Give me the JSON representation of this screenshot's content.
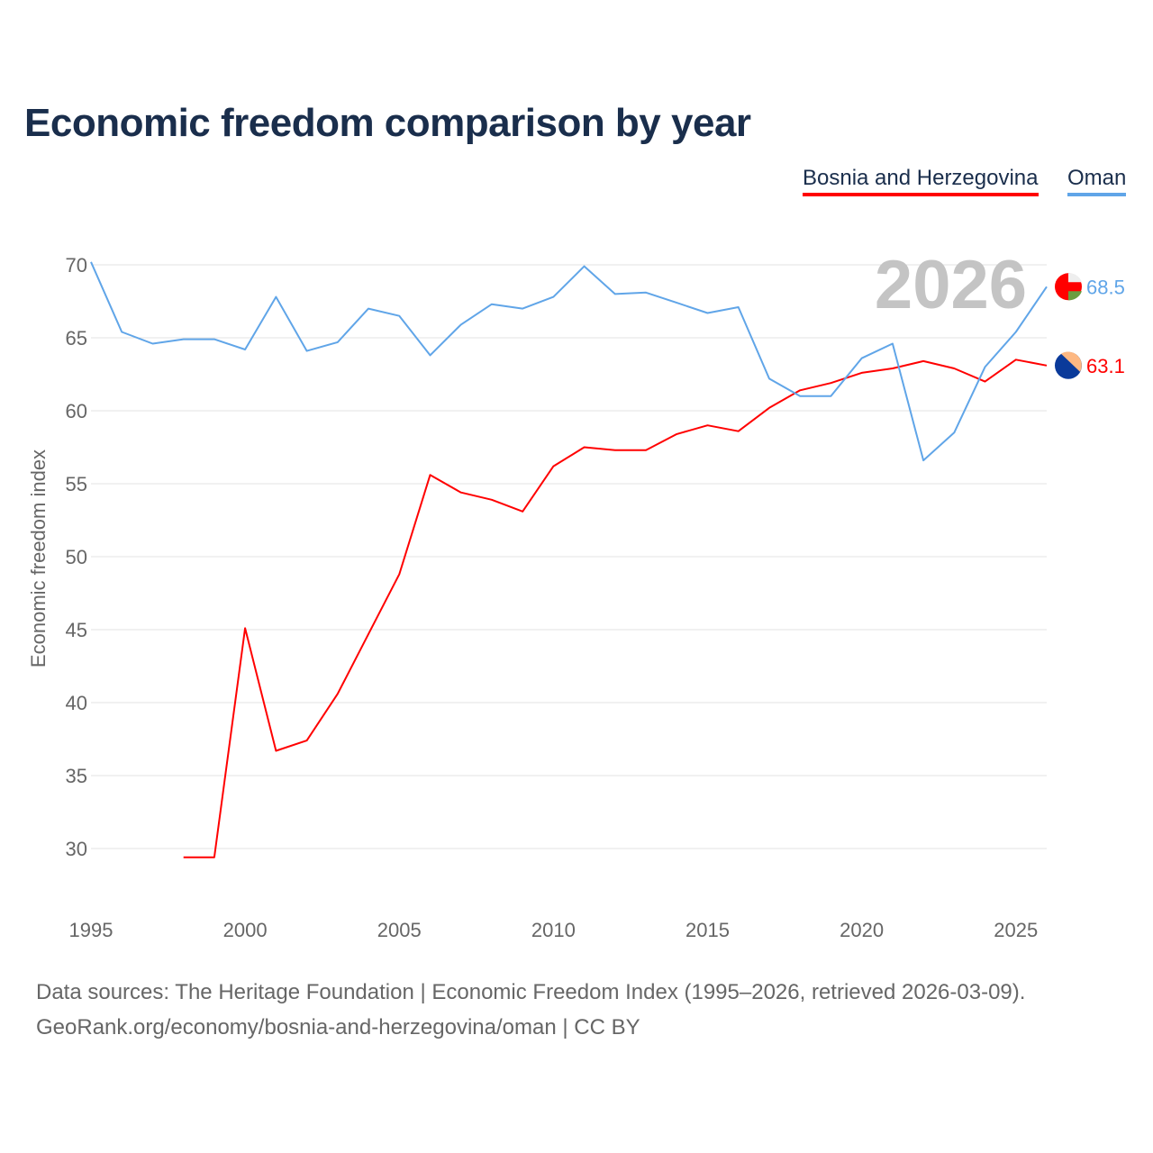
{
  "chart_data": {
    "type": "line",
    "title": "Economic freedom comparison by year",
    "xlabel": "",
    "ylabel": "Economic freedom index",
    "xlim": [
      1995,
      2026
    ],
    "ylim": [
      26,
      72
    ],
    "x_ticks": [
      1995,
      2000,
      2005,
      2010,
      2015,
      2020,
      2025
    ],
    "y_ticks": [
      30,
      35,
      40,
      45,
      50,
      55,
      60,
      65,
      70
    ],
    "grid": true,
    "legend_placement": "top-right",
    "year_watermark": "2026",
    "series": [
      {
        "name": "Bosnia and Herzegovina",
        "color": "#ff0000",
        "end_label": "63.1",
        "x": [
          1998,
          1999,
          2000,
          2001,
          2002,
          2003,
          2004,
          2005,
          2006,
          2007,
          2008,
          2009,
          2010,
          2011,
          2012,
          2013,
          2014,
          2015,
          2016,
          2017,
          2018,
          2019,
          2020,
          2021,
          2022,
          2023,
          2024,
          2025,
          2026
        ],
        "values": [
          29.4,
          29.4,
          45.1,
          36.7,
          37.4,
          40.6,
          44.7,
          48.8,
          55.6,
          54.4,
          53.9,
          53.1,
          56.2,
          57.5,
          57.3,
          57.3,
          58.4,
          59.0,
          58.6,
          60.2,
          61.4,
          61.9,
          62.6,
          62.9,
          63.4,
          62.9,
          62.0,
          63.5,
          63.1
        ]
      },
      {
        "name": "Oman",
        "color": "#60a5e8",
        "end_label": "68.5",
        "x": [
          1995,
          1996,
          1997,
          1998,
          1999,
          2000,
          2001,
          2002,
          2003,
          2004,
          2005,
          2006,
          2007,
          2008,
          2009,
          2010,
          2011,
          2012,
          2013,
          2014,
          2015,
          2016,
          2017,
          2018,
          2019,
          2020,
          2021,
          2022,
          2023,
          2024,
          2025,
          2026
        ],
        "values": [
          70.2,
          65.4,
          64.6,
          64.9,
          64.9,
          64.2,
          67.8,
          64.1,
          64.7,
          67.0,
          66.5,
          63.8,
          65.9,
          67.3,
          67.0,
          67.8,
          69.9,
          68.0,
          68.1,
          67.4,
          66.7,
          67.1,
          62.2,
          61.0,
          61.0,
          63.6,
          64.6,
          56.6,
          58.5,
          63.0,
          65.4,
          68.5
        ]
      }
    ]
  },
  "footer": {
    "source": "Data sources: The Heritage Foundation | Economic Freedom Index (1995–2026, retrieved 2026-03-09).",
    "url": "GeoRank.org/economy/bosnia-and-herzegovina/oman | CC BY"
  }
}
